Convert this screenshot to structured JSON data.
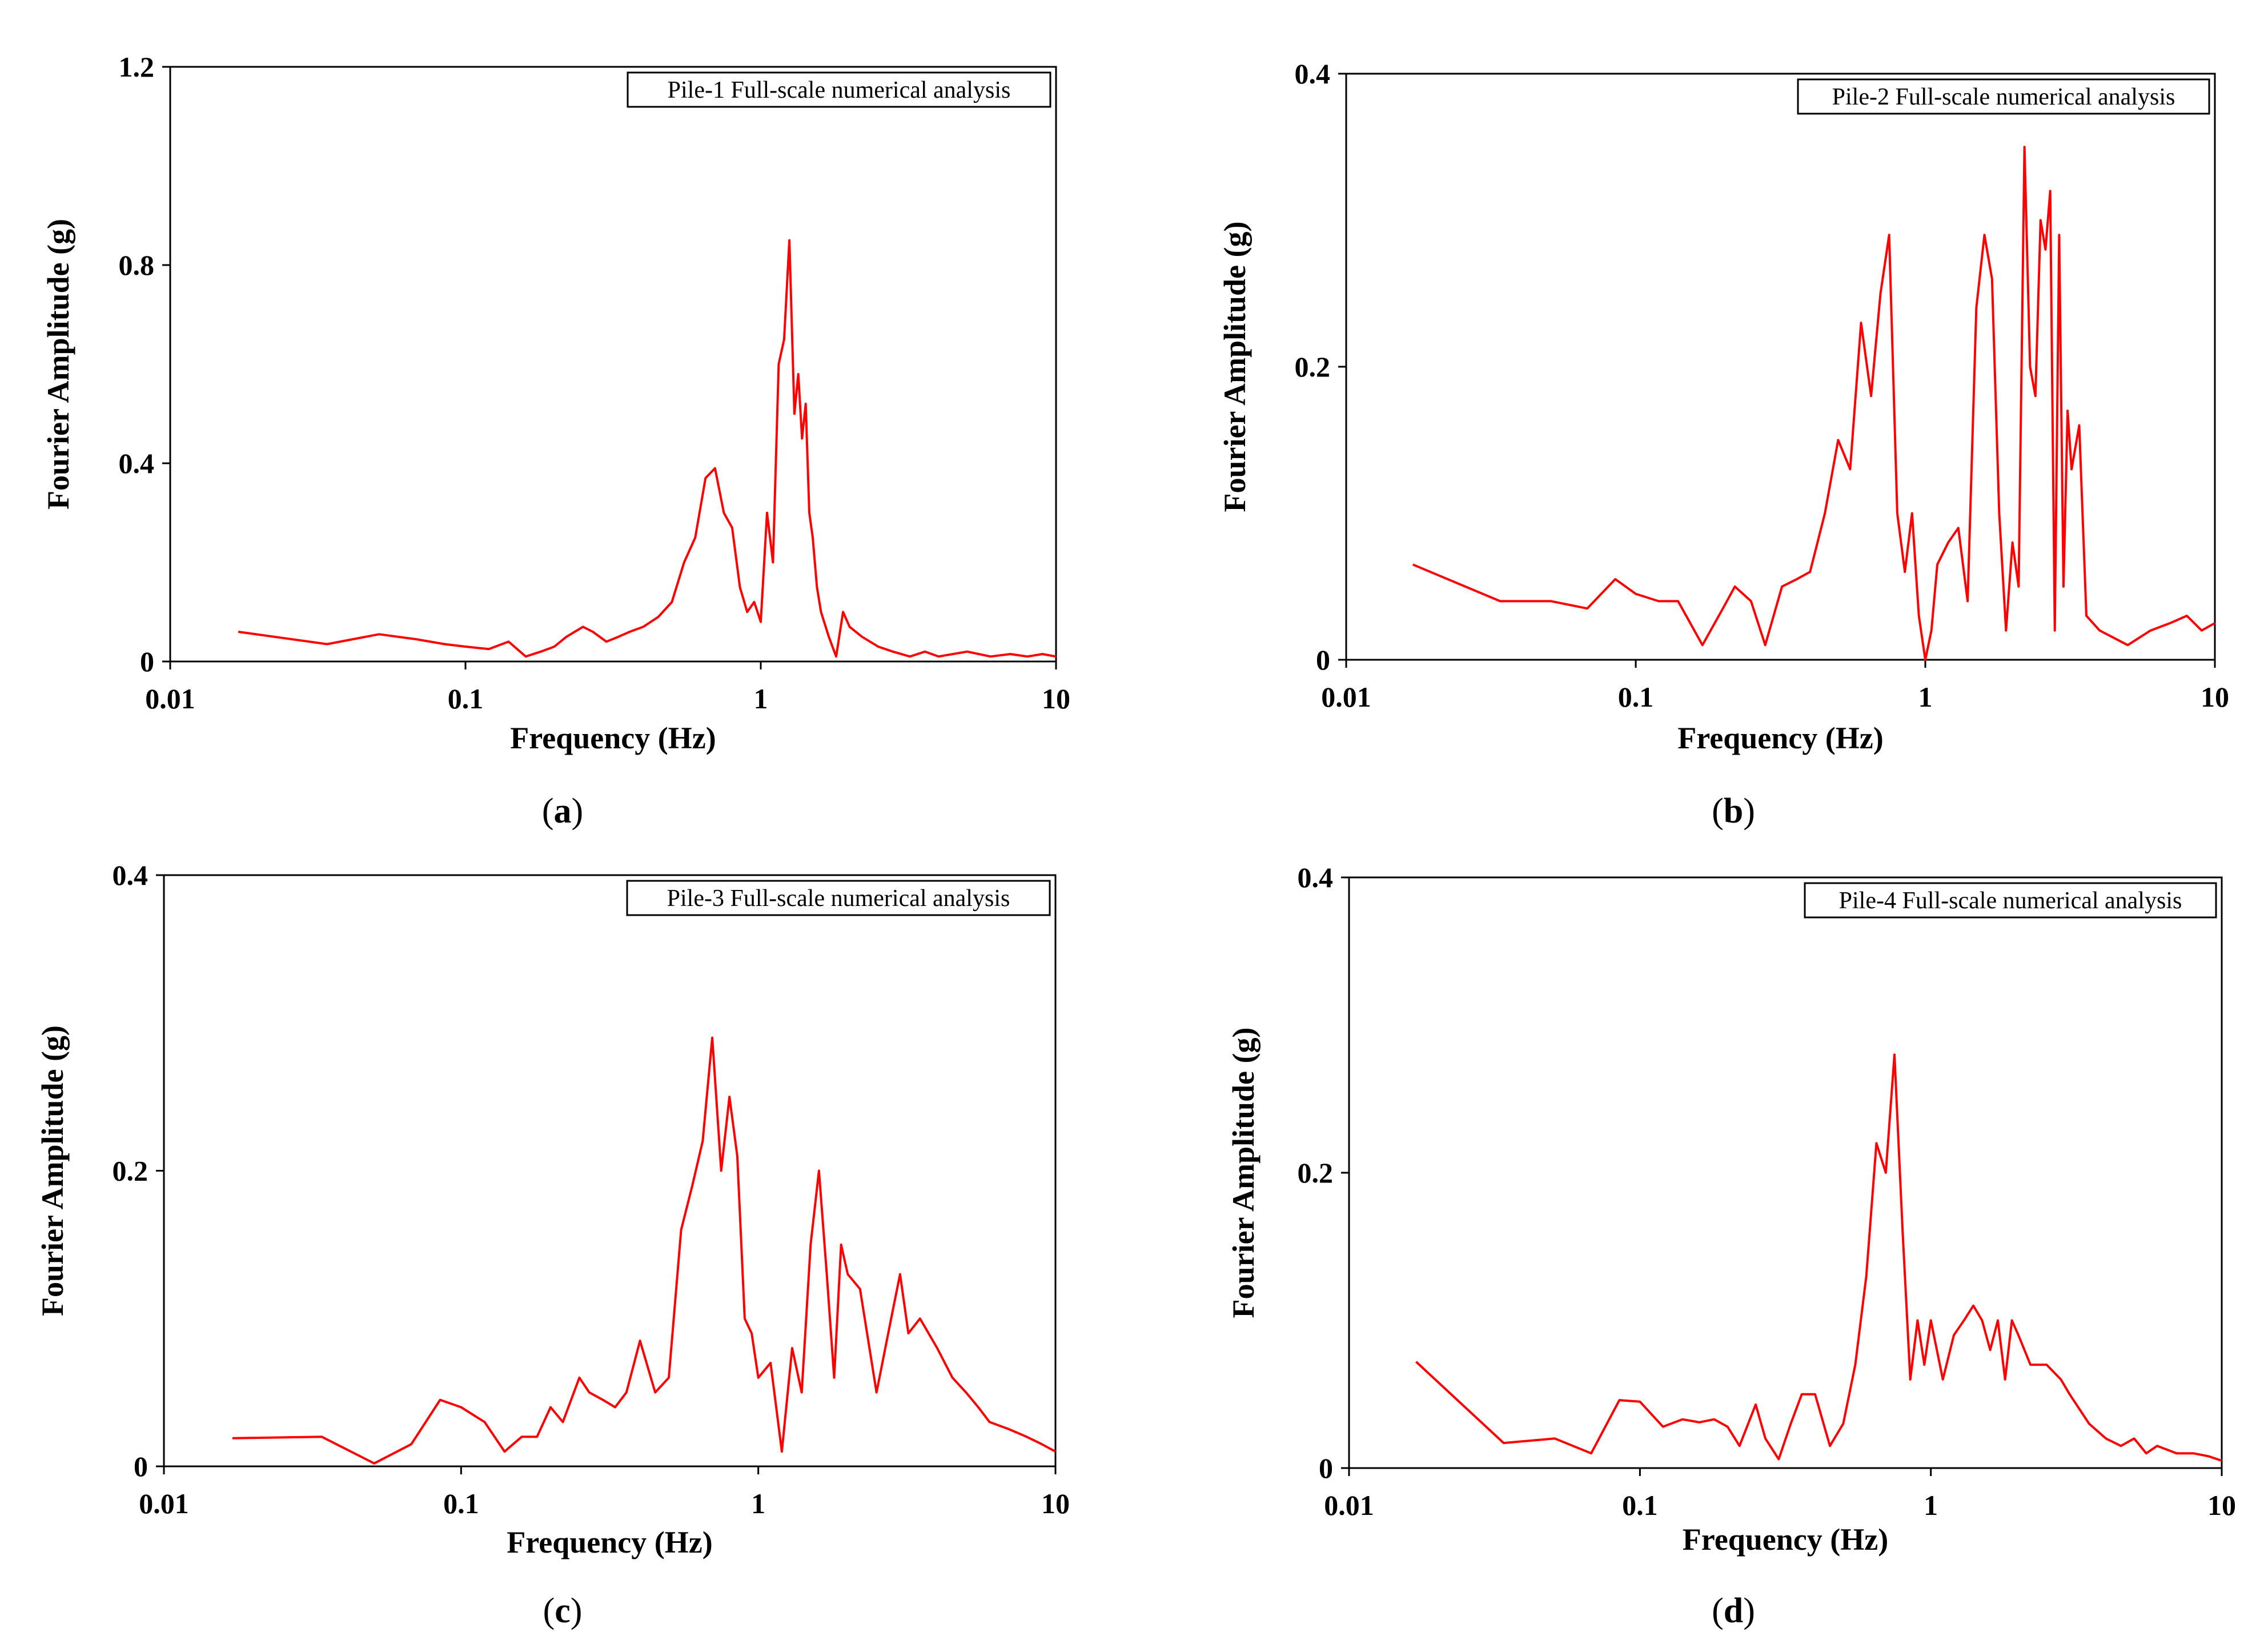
{
  "chart_data": [
    {
      "type": "line",
      "panel": "a",
      "legend": "Pile-1 Full-scale numerical analysis",
      "xlabel": "Frequency (Hz)",
      "ylabel": "Fourier Amplitude (g)",
      "xscale": "log",
      "xlim": [
        0.01,
        10
      ],
      "ylim": [
        0,
        1.2
      ],
      "xticks": [
        "0.01",
        "0.1",
        "1",
        "10"
      ],
      "yticks": [
        "0",
        "0.4",
        "0.8",
        "1.2"
      ],
      "ytick_values": [
        0,
        0.4,
        0.8,
        1.2
      ],
      "line_color": "#ff0000",
      "series": [
        {
          "name": "Pile-1",
          "x": [
            0.017,
            0.034,
            0.051,
            0.068,
            0.085,
            0.1,
            0.12,
            0.14,
            0.16,
            0.18,
            0.2,
            0.22,
            0.25,
            0.27,
            0.3,
            0.33,
            0.36,
            0.4,
            0.45,
            0.5,
            0.55,
            0.6,
            0.65,
            0.7,
            0.75,
            0.8,
            0.85,
            0.9,
            0.95,
            1.0,
            1.05,
            1.1,
            1.15,
            1.2,
            1.25,
            1.3,
            1.34,
            1.38,
            1.42,
            1.46,
            1.5,
            1.55,
            1.6,
            1.7,
            1.8,
            1.9,
            2.0,
            2.2,
            2.5,
            2.8,
            3.2,
            3.6,
            4.0,
            5.0,
            6.0,
            7.0,
            8.0,
            9.0,
            10.0
          ],
          "y": [
            0.06,
            0.035,
            0.055,
            0.045,
            0.035,
            0.03,
            0.025,
            0.04,
            0.01,
            0.02,
            0.03,
            0.05,
            0.07,
            0.06,
            0.04,
            0.05,
            0.06,
            0.07,
            0.09,
            0.12,
            0.2,
            0.25,
            0.37,
            0.39,
            0.3,
            0.27,
            0.15,
            0.1,
            0.12,
            0.08,
            0.3,
            0.2,
            0.6,
            0.65,
            0.85,
            0.5,
            0.58,
            0.45,
            0.52,
            0.3,
            0.25,
            0.15,
            0.1,
            0.05,
            0.01,
            0.1,
            0.07,
            0.05,
            0.03,
            0.02,
            0.01,
            0.02,
            0.01,
            0.02,
            0.01,
            0.015,
            0.01,
            0.015,
            0.01
          ]
        }
      ]
    },
    {
      "type": "line",
      "panel": "b",
      "legend": "Pile-2 Full-scale numerical analysis",
      "xlabel": "Frequency (Hz)",
      "ylabel": "Fourier Amplitude (g)",
      "xscale": "log",
      "xlim": [
        0.01,
        10
      ],
      "ylim": [
        0,
        0.4
      ],
      "xticks": [
        "0.01",
        "0.1",
        "1",
        "10"
      ],
      "yticks": [
        "0",
        "0.2",
        "0.4"
      ],
      "ytick_values": [
        0,
        0.2,
        0.4
      ],
      "line_color": "#ff0000",
      "series": [
        {
          "name": "Pile-2",
          "x": [
            0.017,
            0.034,
            0.051,
            0.068,
            0.085,
            0.1,
            0.12,
            0.14,
            0.17,
            0.2,
            0.22,
            0.25,
            0.28,
            0.32,
            0.36,
            0.4,
            0.45,
            0.5,
            0.55,
            0.6,
            0.65,
            0.7,
            0.75,
            0.8,
            0.85,
            0.9,
            0.95,
            1.0,
            1.05,
            1.1,
            1.2,
            1.3,
            1.4,
            1.5,
            1.6,
            1.7,
            1.8,
            1.9,
            2.0,
            2.1,
            2.2,
            2.3,
            2.4,
            2.5,
            2.6,
            2.7,
            2.8,
            2.9,
            3.0,
            3.1,
            3.2,
            3.4,
            3.6,
            4.0,
            5.0,
            6.0,
            7.0,
            8.0,
            9.0,
            10.0
          ],
          "y": [
            0.065,
            0.04,
            0.04,
            0.035,
            0.055,
            0.045,
            0.04,
            0.04,
            0.01,
            0.035,
            0.05,
            0.04,
            0.01,
            0.05,
            0.055,
            0.06,
            0.1,
            0.15,
            0.13,
            0.23,
            0.18,
            0.25,
            0.29,
            0.1,
            0.06,
            0.1,
            0.03,
            0.0,
            0.02,
            0.065,
            0.08,
            0.09,
            0.04,
            0.24,
            0.29,
            0.26,
            0.1,
            0.02,
            0.08,
            0.05,
            0.35,
            0.2,
            0.18,
            0.3,
            0.28,
            0.32,
            0.02,
            0.29,
            0.05,
            0.17,
            0.13,
            0.16,
            0.03,
            0.02,
            0.01,
            0.02,
            0.025,
            0.03,
            0.02,
            0.025
          ]
        }
      ]
    },
    {
      "type": "line",
      "panel": "c",
      "legend": "Pile-3 Full-scale numerical analysis",
      "xlabel": "Frequency (Hz)",
      "ylabel": "Fourier Amplitude (g)",
      "xscale": "log",
      "xlim": [
        0.01,
        10
      ],
      "ylim": [
        0,
        0.4
      ],
      "xticks": [
        "0.01",
        "0.1",
        "1",
        "10"
      ],
      "yticks": [
        "0",
        "0.2",
        "0.4"
      ],
      "ytick_values": [
        0,
        0.2,
        0.4
      ],
      "line_color": "#ff0000",
      "series": [
        {
          "name": "Pile-3",
          "x": [
            0.017,
            0.034,
            0.051,
            0.068,
            0.085,
            0.1,
            0.12,
            0.14,
            0.16,
            0.18,
            0.2,
            0.22,
            0.25,
            0.27,
            0.3,
            0.33,
            0.36,
            0.4,
            0.45,
            0.5,
            0.55,
            0.6,
            0.65,
            0.7,
            0.75,
            0.8,
            0.85,
            0.9,
            0.95,
            1.0,
            1.1,
            1.2,
            1.3,
            1.4,
            1.5,
            1.6,
            1.7,
            1.8,
            1.9,
            2.0,
            2.2,
            2.5,
            2.8,
            3.0,
            3.2,
            3.5,
            4.0,
            4.5,
            5.0,
            5.5,
            6.0,
            7.0,
            8.0,
            9.0,
            10.0
          ],
          "y": [
            0.019,
            0.02,
            0.002,
            0.015,
            0.045,
            0.04,
            0.03,
            0.01,
            0.02,
            0.02,
            0.04,
            0.03,
            0.06,
            0.05,
            0.045,
            0.04,
            0.05,
            0.085,
            0.05,
            0.06,
            0.16,
            0.19,
            0.22,
            0.29,
            0.2,
            0.25,
            0.21,
            0.1,
            0.09,
            0.06,
            0.07,
            0.01,
            0.08,
            0.05,
            0.15,
            0.2,
            0.13,
            0.06,
            0.15,
            0.13,
            0.12,
            0.05,
            0.1,
            0.13,
            0.09,
            0.1,
            0.08,
            0.06,
            0.05,
            0.04,
            0.03,
            0.025,
            0.02,
            0.015,
            0.01
          ]
        }
      ]
    },
    {
      "type": "line",
      "panel": "d",
      "legend": "Pile-4 Full-scale numerical analysis",
      "xlabel": "Frequency (Hz)",
      "ylabel": "Fourier Amplitude (g)",
      "xscale": "log",
      "xlim": [
        0.01,
        10
      ],
      "ylim": [
        0,
        0.4
      ],
      "xticks": [
        "0.01",
        "0.1",
        "1",
        "10"
      ],
      "yticks": [
        "0",
        "0.2",
        "0.4"
      ],
      "ytick_values": [
        0,
        0.2,
        0.4
      ],
      "line_color": "#ff0000",
      "series": [
        {
          "name": "Pile-4",
          "x": [
            0.017,
            0.034,
            0.051,
            0.068,
            0.085,
            0.1,
            0.12,
            0.14,
            0.16,
            0.18,
            0.2,
            0.22,
            0.25,
            0.27,
            0.3,
            0.33,
            0.36,
            0.4,
            0.45,
            0.5,
            0.55,
            0.6,
            0.65,
            0.7,
            0.75,
            0.8,
            0.85,
            0.9,
            0.95,
            1.0,
            1.1,
            1.2,
            1.3,
            1.4,
            1.5,
            1.6,
            1.7,
            1.8,
            1.9,
            2.0,
            2.2,
            2.5,
            2.8,
            3.0,
            3.5,
            4.0,
            4.5,
            5.0,
            5.5,
            6.0,
            7.0,
            8.0,
            9.0,
            10.0
          ],
          "y": [
            0.072,
            0.017,
            0.02,
            0.01,
            0.046,
            0.045,
            0.028,
            0.033,
            0.031,
            0.033,
            0.028,
            0.015,
            0.043,
            0.02,
            0.006,
            0.03,
            0.05,
            0.05,
            0.015,
            0.03,
            0.07,
            0.13,
            0.22,
            0.2,
            0.28,
            0.16,
            0.06,
            0.1,
            0.07,
            0.1,
            0.06,
            0.09,
            0.1,
            0.11,
            0.1,
            0.08,
            0.1,
            0.06,
            0.1,
            0.09,
            0.07,
            0.07,
            0.06,
            0.05,
            0.03,
            0.02,
            0.015,
            0.02,
            0.01,
            0.015,
            0.01,
            0.01,
            0.008,
            0.005
          ]
        }
      ]
    }
  ],
  "panel_labels": [
    {
      "open": "(",
      "letter": "a",
      "close": ")"
    },
    {
      "open": "(",
      "letter": "b",
      "close": ")"
    },
    {
      "open": "(",
      "letter": "c",
      "close": ")"
    },
    {
      "open": "(",
      "letter": "d",
      "close": ")"
    }
  ]
}
